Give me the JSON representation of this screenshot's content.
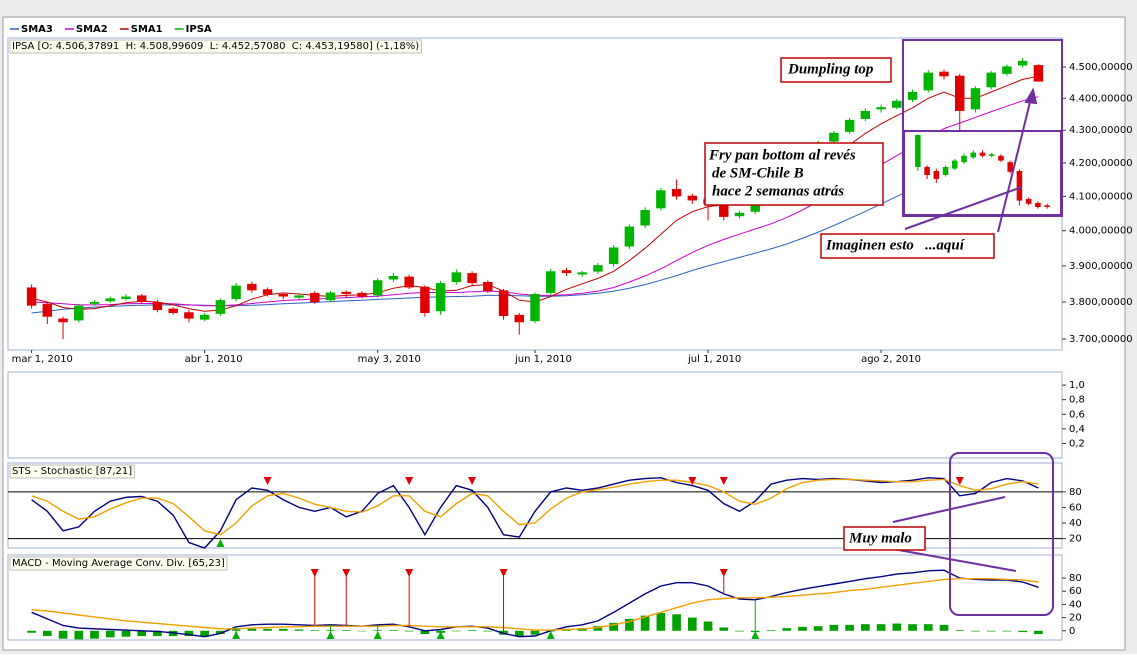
{
  "chart_data": [
    {
      "type": "candlestick",
      "name": "IPSA",
      "title": "IPSA [O: 4.506,37891  H: 4.508,99609  L: 4.452,57080  C: 4.453,19580] (-1,18%)",
      "up_color": "#00b400",
      "down_color": "#e00000",
      "categories": [
        "mar 1, 2010",
        null,
        null,
        null,
        null,
        null,
        null,
        null,
        null,
        null,
        null,
        "abr 1, 2010",
        null,
        null,
        null,
        null,
        null,
        null,
        null,
        null,
        null,
        null,
        "may 3, 2010",
        null,
        null,
        null,
        null,
        null,
        null,
        null,
        null,
        null,
        "jun 1, 2010",
        null,
        null,
        null,
        null,
        null,
        null,
        null,
        null,
        null,
        null,
        "jul 1, 2010",
        null,
        null,
        null,
        null,
        null,
        null,
        null,
        null,
        null,
        null,
        "ago 2, 2010",
        null,
        null,
        null,
        null,
        null,
        null,
        null,
        null,
        null,
        null
      ],
      "open": [
        3840,
        3795,
        3755,
        3750,
        3795,
        3802,
        3808,
        3818,
        3800,
        3782,
        3772,
        3752,
        3768,
        3808,
        3850,
        3835,
        3822,
        3812,
        3825,
        3805,
        3828,
        3825,
        3818,
        3862,
        3870,
        3842,
        3775,
        3855,
        3880,
        3855,
        3832,
        3765,
        3748,
        3825,
        3888,
        3876,
        3884,
        3905,
        3955,
        4015,
        4065,
        4122,
        4102,
        4092,
        4080,
        4042,
        4055,
        4085,
        4135,
        4185,
        4235,
        4265,
        4295,
        4335,
        4365,
        4370,
        4395,
        4425,
        4485,
        4472,
        4365,
        4435,
        4478,
        4505,
        4506.38
      ],
      "high": [
        3848,
        3800,
        3760,
        3795,
        3805,
        3815,
        3822,
        3822,
        3805,
        3786,
        3778,
        3770,
        3810,
        3852,
        3856,
        3840,
        3826,
        3822,
        3830,
        3830,
        3832,
        3830,
        3866,
        3880,
        3875,
        3846,
        3858,
        3890,
        3885,
        3860,
        3836,
        3770,
        3826,
        3892,
        3895,
        3886,
        3908,
        3958,
        4018,
        4068,
        4125,
        4150,
        4108,
        4100,
        4085,
        4058,
        4088,
        4136,
        4188,
        4236,
        4268,
        4298,
        4338,
        4368,
        4380,
        4398,
        4428,
        4490,
        4492,
        4478,
        4438,
        4488,
        4508,
        4530,
        4508.99
      ],
      "low": [
        3782,
        3740,
        3700,
        3745,
        3790,
        3798,
        3804,
        3795,
        3772,
        3765,
        3745,
        3748,
        3762,
        3802,
        3825,
        3815,
        3808,
        3808,
        3795,
        3800,
        3812,
        3810,
        3812,
        3855,
        3835,
        3760,
        3765,
        3848,
        3845,
        3825,
        3752,
        3712,
        3742,
        3818,
        3872,
        3870,
        3878,
        3898,
        3948,
        4008,
        4058,
        4090,
        4078,
        4030,
        4030,
        4035,
        4048,
        4078,
        4128,
        4178,
        4228,
        4258,
        4288,
        4328,
        4355,
        4365,
        4388,
        4418,
        4460,
        4300,
        4355,
        4428,
        4472,
        4498,
        4452.57
      ],
      "close": [
        3790,
        3760,
        3745,
        3790,
        3800,
        3810,
        3815,
        3800,
        3778,
        3770,
        3755,
        3765,
        3805,
        3845,
        3832,
        3820,
        3815,
        3818,
        3800,
        3826,
        3822,
        3815,
        3860,
        3872,
        3840,
        3770,
        3852,
        3882,
        3852,
        3830,
        3762,
        3745,
        3822,
        3885,
        3880,
        3882,
        3902,
        3952,
        4012,
        4060,
        4118,
        4100,
        4088,
        4078,
        4040,
        4052,
        4082,
        4130,
        4182,
        4230,
        4262,
        4292,
        4332,
        4360,
        4372,
        4392,
        4420,
        4482,
        4470,
        4360,
        4432,
        4482,
        4502,
        4520,
        4453.2
      ],
      "series": [
        {
          "name": "SMA3",
          "color": "#3060c0",
          "values": [
            3770,
            3775,
            3780,
            3783,
            3786,
            3788,
            3790,
            3791,
            3792,
            3792,
            3792,
            3791,
            3790,
            3790,
            3791,
            3793,
            3795,
            3797,
            3799,
            3801,
            3803,
            3805,
            3807,
            3809,
            3811,
            3813,
            3814,
            3815,
            3816,
            3818,
            3818,
            3817,
            3816,
            3816,
            3817,
            3820,
            3824,
            3830,
            3838,
            3848,
            3860,
            3873,
            3887,
            3900,
            3912,
            3924,
            3936,
            3948,
            3962,
            3978,
            3996,
            4015,
            4035,
            4056,
            4078,
            4100,
            4122,
            4145,
            4168,
            4190,
            4210,
            4228,
            4246,
            4262,
            4278
          ]
        },
        {
          "name": "SMA2",
          "color": "#d000d0",
          "values": [
            3800,
            3798,
            3795,
            3792,
            3792,
            3793,
            3795,
            3796,
            3796,
            3795,
            3792,
            3790,
            3790,
            3792,
            3796,
            3800,
            3804,
            3806,
            3808,
            3810,
            3812,
            3814,
            3816,
            3820,
            3824,
            3826,
            3826,
            3826,
            3828,
            3830,
            3828,
            3822,
            3818,
            3818,
            3820,
            3824,
            3830,
            3840,
            3855,
            3872,
            3892,
            3915,
            3938,
            3958,
            3975,
            3990,
            4005,
            4020,
            4038,
            4060,
            4085,
            4112,
            4140,
            4168,
            4195,
            4222,
            4250,
            4278,
            4305,
            4322,
            4340,
            4358,
            4375,
            4392,
            4405
          ]
        },
        {
          "name": "SMA1",
          "color": "#c00000",
          "values": [
            3810,
            3800,
            3785,
            3780,
            3782,
            3790,
            3798,
            3802,
            3800,
            3792,
            3782,
            3775,
            3778,
            3790,
            3808,
            3820,
            3825,
            3822,
            3818,
            3815,
            3818,
            3820,
            3825,
            3838,
            3845,
            3840,
            3830,
            3832,
            3845,
            3848,
            3830,
            3805,
            3800,
            3815,
            3835,
            3850,
            3865,
            3885,
            3915,
            3950,
            3990,
            4030,
            4055,
            4070,
            4075,
            4075,
            4075,
            4090,
            4115,
            4150,
            4185,
            4220,
            4255,
            4290,
            4320,
            4345,
            4370,
            4400,
            4420,
            4400,
            4400,
            4420,
            4440,
            4460,
            4470
          ]
        }
      ],
      "log_scale": true,
      "ylim": [
        3671,
        4595
      ],
      "yticks": [
        {
          "value": 4500,
          "label": "4.500,00000"
        },
        {
          "value": 4400,
          "label": "4.400,00000"
        },
        {
          "value": 4300,
          "label": "4.300,00000"
        },
        {
          "value": 4200,
          "label": "4.200,00000"
        },
        {
          "value": 4100,
          "label": "4.100,00000"
        },
        {
          "value": 4000,
          "label": "4.000,00000"
        },
        {
          "value": 3900,
          "label": "3.900,00000"
        },
        {
          "value": 3800,
          "label": "3.800,00000"
        },
        {
          "value": 3700,
          "label": "3.700,00000"
        }
      ]
    },
    {
      "type": "line",
      "ylim": [
        0,
        1.18
      ],
      "yticks": [
        {
          "value": 1,
          "label": "1,0"
        },
        {
          "value": 0.8,
          "label": "0,8"
        },
        {
          "value": 0.6,
          "label": "0,6"
        },
        {
          "value": 0.4,
          "label": "0,4"
        },
        {
          "value": 0.2,
          "label": "0,2"
        }
      ]
    },
    {
      "type": "line",
      "title": "STS - Stochastic [87,21]",
      "series": [
        {
          "color": "#000080",
          "values": [
            70,
            55,
            30,
            35,
            55,
            68,
            73,
            74,
            68,
            50,
            15,
            8,
            30,
            70,
            85,
            82,
            70,
            60,
            55,
            60,
            48,
            55,
            78,
            88,
            60,
            25,
            60,
            88,
            82,
            60,
            25,
            22,
            55,
            80,
            85,
            82,
            85,
            90,
            95,
            97,
            98,
            92,
            88,
            82,
            65,
            55,
            68,
            90,
            95,
            97,
            96,
            97,
            96,
            94,
            92,
            93,
            95,
            98,
            97,
            75,
            78,
            92,
            97,
            94,
            85
          ]
        },
        {
          "color": "#f0a000",
          "values": [
            75,
            68,
            55,
            45,
            48,
            58,
            66,
            72,
            72,
            65,
            48,
            30,
            25,
            40,
            62,
            75,
            78,
            72,
            64,
            60,
            55,
            54,
            62,
            75,
            75,
            55,
            48,
            65,
            78,
            75,
            55,
            38,
            40,
            58,
            72,
            80,
            83,
            86,
            90,
            93,
            95,
            95,
            92,
            88,
            80,
            68,
            64,
            72,
            84,
            92,
            95,
            96,
            96,
            95,
            94,
            93,
            93,
            95,
            96,
            88,
            82,
            84,
            90,
            93,
            90
          ]
        }
      ],
      "ylim": [
        8,
        117
      ],
      "yticks": [
        80,
        60,
        40,
        20
      ],
      "levels": [
        80,
        20
      ],
      "sell_signals": [
        15,
        24,
        28,
        42,
        44,
        59
      ],
      "buy_signals": [
        12
      ],
      "sell_color": "#e00000",
      "buy_color": "#00b000"
    },
    {
      "type": "line",
      "title": "MACD - Moving Average Conv. Div. [65,23]",
      "series": [
        {
          "color": "#000080",
          "values": [
            28,
            18,
            8,
            4,
            3,
            2,
            1,
            0,
            -1,
            -3,
            -6,
            -9,
            -4,
            6,
            9,
            10,
            10,
            9,
            8,
            9,
            8,
            7,
            9,
            10,
            6,
            0,
            2,
            6,
            7,
            4,
            -4,
            -9,
            -8,
            0,
            6,
            9,
            15,
            28,
            42,
            56,
            68,
            73,
            73,
            68,
            56,
            48,
            47,
            52,
            58,
            63,
            67,
            71,
            75,
            79,
            82,
            86,
            88,
            91,
            92,
            80,
            78,
            77,
            77,
            74,
            66
          ]
        },
        {
          "color": "#f0a000",
          "values": [
            32,
            30,
            27,
            24,
            21,
            18,
            15,
            13,
            11,
            9,
            7,
            5,
            3,
            3,
            4,
            5,
            6,
            6,
            7,
            7,
            7,
            7,
            7,
            8,
            8,
            7,
            6,
            6,
            6,
            6,
            5,
            3,
            1,
            1,
            2,
            3,
            5,
            9,
            14,
            21,
            28,
            35,
            42,
            47,
            49,
            50,
            50,
            51,
            52,
            54,
            56,
            58,
            61,
            63,
            66,
            69,
            72,
            75,
            78,
            79,
            79,
            79,
            78,
            77,
            74
          ]
        }
      ],
      "histogram": {
        "color": "#00a000",
        "values": [
          -3,
          -8,
          -12,
          -13,
          -12,
          -10,
          -9,
          -8,
          -8,
          -8,
          -8,
          -9,
          -5,
          2,
          3,
          3,
          3,
          2,
          1,
          1,
          1,
          0,
          1,
          1,
          -1,
          -5,
          -3,
          0,
          1,
          -1,
          -6,
          -8,
          -6,
          -1,
          3,
          4,
          7,
          12,
          18,
          23,
          27,
          25,
          20,
          14,
          5,
          -1,
          -2,
          1,
          4,
          6,
          7,
          9,
          9,
          10,
          10,
          11,
          10,
          10,
          9,
          1,
          -1,
          -1,
          -1,
          -2,
          -5
        ]
      },
      "ylim": [
        -14,
        115
      ],
      "yticks": [
        80,
        60,
        40,
        20,
        0
      ],
      "sell_signals": [
        18,
        20,
        24,
        30,
        44
      ],
      "buy_signals": [
        13,
        19,
        22,
        26,
        33,
        46
      ],
      "sell_color": "#e00000",
      "buy_color": "#00b000"
    },
    {
      "type": "candlestick",
      "up_color": "#00b400",
      "down_color": "#e00000",
      "ylim": [
        0,
        105
      ],
      "open": [
        60,
        60,
        55,
        50,
        58,
        66,
        72,
        78,
        74,
        74,
        66,
        55,
        20,
        15,
        12
      ],
      "high": [
        101,
        62,
        58,
        62,
        70,
        77,
        81,
        81,
        78,
        76,
        68,
        57,
        22,
        17,
        14
      ],
      "low": [
        55,
        45,
        40,
        48,
        56,
        64,
        70,
        72,
        72,
        66,
        52,
        12,
        12,
        8,
        8
      ],
      "close": [
        100,
        50,
        45,
        60,
        68,
        74,
        78,
        74,
        76,
        68,
        54,
        18,
        14,
        10,
        10
      ]
    }
  ],
  "annotations": [
    {
      "lines": [
        "Dumpling top"
      ]
    },
    {
      "lines": [
        "Fry pan bottom al revés",
        "de SM-Chile B",
        "hace 2 semanas atrás"
      ]
    },
    {
      "lines": [
        "Imaginen esto   ...aquí"
      ]
    },
    {
      "lines": [
        "Muy malo"
      ]
    }
  ]
}
